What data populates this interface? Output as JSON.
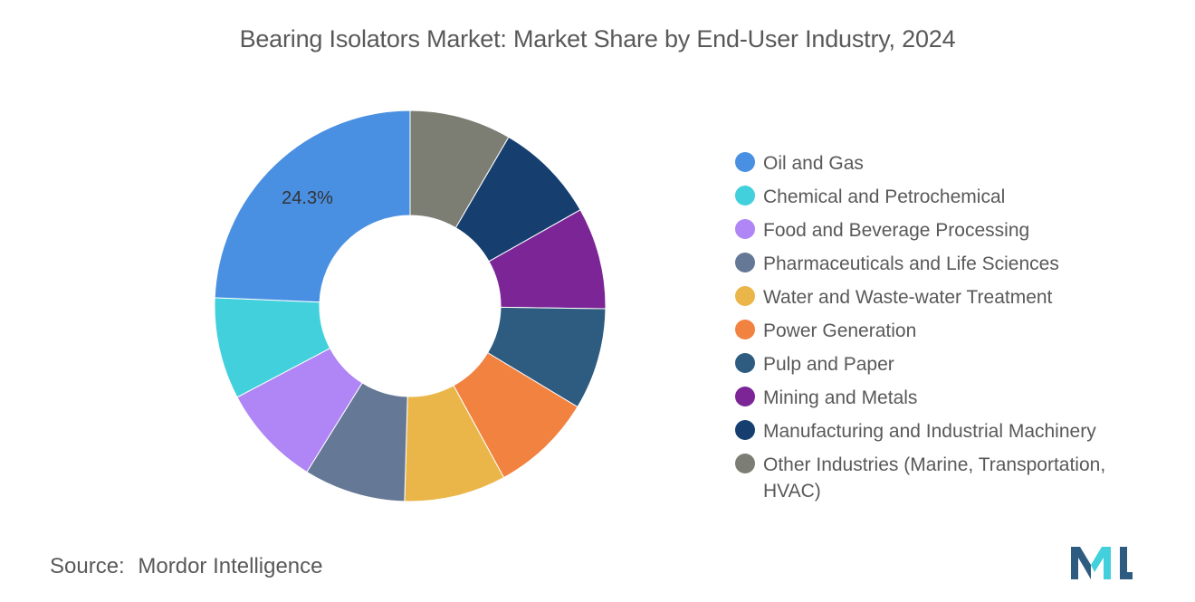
{
  "title": "Bearing Isolators Market: Market Share by End-User Industry, 2024",
  "source": {
    "label": "Source:",
    "value": "Mordor Intelligence"
  },
  "chart_data": {
    "type": "pie",
    "variant": "donut",
    "title": "Bearing Isolators Market: Market Share by End-User Industry, 2024",
    "categories": [
      "Other Industries (Marine, Transportation, HVAC)",
      "Manufacturing and Industrial Machinery",
      "Mining and Metals",
      "Pulp and Paper",
      "Power Generation",
      "Water and Waste-water Treatment",
      "Pharmaceuticals and Life Sciences",
      "Food and Beverage Processing",
      "Chemical and Petrochemical",
      "Oil and Gas"
    ],
    "values": [
      8.4,
      8.4,
      8.4,
      8.4,
      8.4,
      8.4,
      8.4,
      8.4,
      8.4,
      24.3
    ],
    "colors": [
      "#7c7d73",
      "#163f70",
      "#7b2596",
      "#2e5c80",
      "#f28240",
      "#ebb649",
      "#657895",
      "#b085f5",
      "#41d0dc",
      "#4a90e2"
    ],
    "data_labels": [
      {
        "category": "Oil and Gas",
        "text": "24.3%"
      }
    ],
    "legend_position": "right"
  },
  "legend": [
    {
      "label": "Oil and Gas",
      "color": "#4a90e2"
    },
    {
      "label": "Chemical and Petrochemical",
      "color": "#41d0dc"
    },
    {
      "label": "Food and Beverage Processing",
      "color": "#b085f5"
    },
    {
      "label": "Pharmaceuticals and Life Sciences",
      "color": "#657895"
    },
    {
      "label": "Water and Waste-water Treatment",
      "color": "#ebb649"
    },
    {
      "label": "Power Generation",
      "color": "#f28240"
    },
    {
      "label": "Pulp and Paper",
      "color": "#2e5c80"
    },
    {
      "label": "Mining and Metals",
      "color": "#7b2596"
    },
    {
      "label": "Manufacturing and Industrial Machinery",
      "color": "#163f70"
    },
    {
      "label": "Other Industries (Marine, Transportation, HVAC)",
      "color": "#7c7d73"
    }
  ],
  "logo": {
    "name": "mordor-intelligence-logo",
    "colors": [
      "#2e5c80",
      "#41d0dc"
    ]
  }
}
